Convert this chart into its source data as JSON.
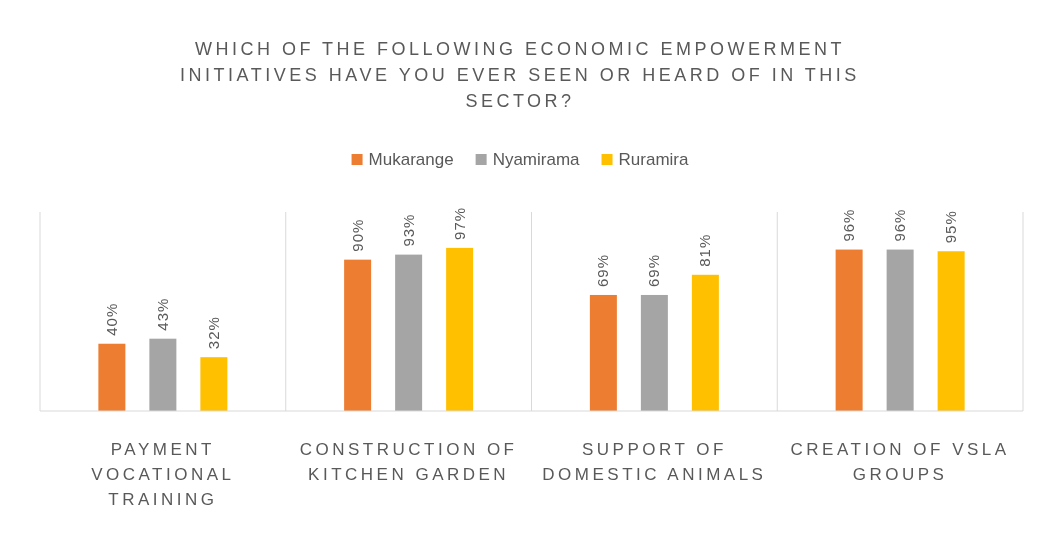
{
  "chart_data": {
    "type": "bar",
    "title": "WHICH OF THE FOLLOWING ECONOMIC EMPOWERMENT INITIATIVES HAVE YOU EVER SEEN OR HEARD OF IN THIS SECTOR?",
    "categories": [
      "PAYMENT VOCATIONAL TRAINING",
      "CONSTRUCTION OF KITCHEN GARDEN",
      "SUPPORT OF DOMESTIC ANIMALS",
      "CREATION OF VSLA GROUPS"
    ],
    "series": [
      {
        "name": "Mukarange",
        "color": "#ed7d31",
        "values": [
          40,
          90,
          69,
          96
        ],
        "value_labels": [
          "40%",
          "90%",
          "69%",
          "96%"
        ]
      },
      {
        "name": "Nyamirama",
        "color": "#a5a5a5",
        "values": [
          43,
          93,
          69,
          96
        ],
        "value_labels": [
          "43%",
          "93%",
          "69%",
          "96%"
        ]
      },
      {
        "name": "Ruramira",
        "color": "#ffc000",
        "values": [
          32,
          97,
          81,
          95
        ],
        "value_labels": [
          "32%",
          "97%",
          "81%",
          "95%"
        ]
      }
    ],
    "legend": "top",
    "grid": "x"
  }
}
